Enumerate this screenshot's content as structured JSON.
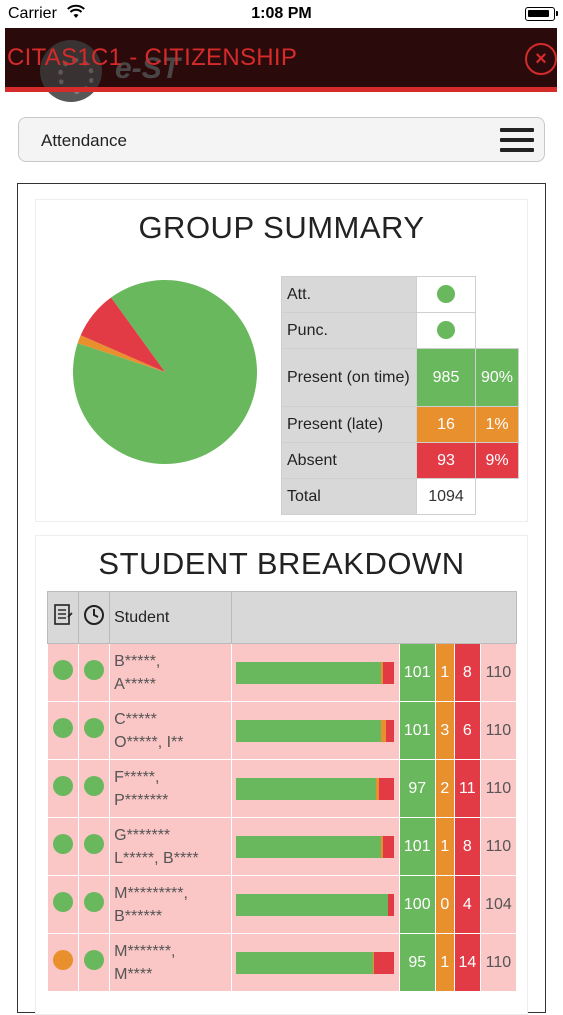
{
  "status_bar": {
    "carrier": "Carrier",
    "time": "1:08 PM"
  },
  "header": {
    "title": "CITAS1C1 - CITIZENSHIP",
    "logo_text": "e-ST",
    "close_icon": "close-icon"
  },
  "dropdown": {
    "label": "Attendance",
    "icon": "hamburger-icon"
  },
  "group_summary": {
    "title": "GROUP SUMMARY",
    "att_label": "Att.",
    "punc_label": "Punc.",
    "rows": [
      {
        "label": "Present (on time)",
        "count": "985",
        "pct": "90%"
      },
      {
        "label": "Present (late)",
        "count": "16",
        "pct": "1%"
      },
      {
        "label": "Absent",
        "count": "93",
        "pct": "9%"
      }
    ],
    "total_label": "Total",
    "total": "1094",
    "colors": {
      "green": "#6ab85e",
      "orange": "#e88f2e",
      "red": "#e33b45"
    }
  },
  "chart_data": {
    "type": "pie",
    "categories": [
      "Present (on time)",
      "Present (late)",
      "Absent"
    ],
    "values": [
      985,
      16,
      93
    ],
    "colors": [
      "#6ab85e",
      "#e88f2e",
      "#e33b45"
    ]
  },
  "student_breakdown": {
    "title": "STUDENT BREAKDOWN",
    "header_student": "Student",
    "students": [
      {
        "name1": "B*****,",
        "name2": "A*****",
        "att": "green",
        "punc": "green",
        "present": "101",
        "late": "1",
        "absent": "8",
        "total": "110",
        "p": 101,
        "l": 1,
        "a": 8
      },
      {
        "name1": "C*****",
        "name2": "O*****, I**",
        "att": "green",
        "punc": "green",
        "present": "101",
        "late": "3",
        "absent": "6",
        "total": "110",
        "p": 101,
        "l": 3,
        "a": 6
      },
      {
        "name1": "F*****,",
        "name2": "P*******",
        "att": "green",
        "punc": "green",
        "present": "97",
        "late": "2",
        "absent": "11",
        "total": "110",
        "p": 97,
        "l": 2,
        "a": 11
      },
      {
        "name1": "G*******",
        "name2": "L*****, B****",
        "att": "green",
        "punc": "green",
        "present": "101",
        "late": "1",
        "absent": "8",
        "total": "110",
        "p": 101,
        "l": 1,
        "a": 8
      },
      {
        "name1": "M*********,",
        "name2": "B******",
        "att": "green",
        "punc": "green",
        "present": "100",
        "late": "0",
        "absent": "4",
        "total": "104",
        "p": 100,
        "l": 0,
        "a": 4
      },
      {
        "name1": "M*******,",
        "name2": "M****",
        "att": "orange",
        "punc": "green",
        "present": "95",
        "late": "1",
        "absent": "14",
        "total": "110",
        "p": 95,
        "l": 1,
        "a": 14
      }
    ]
  }
}
